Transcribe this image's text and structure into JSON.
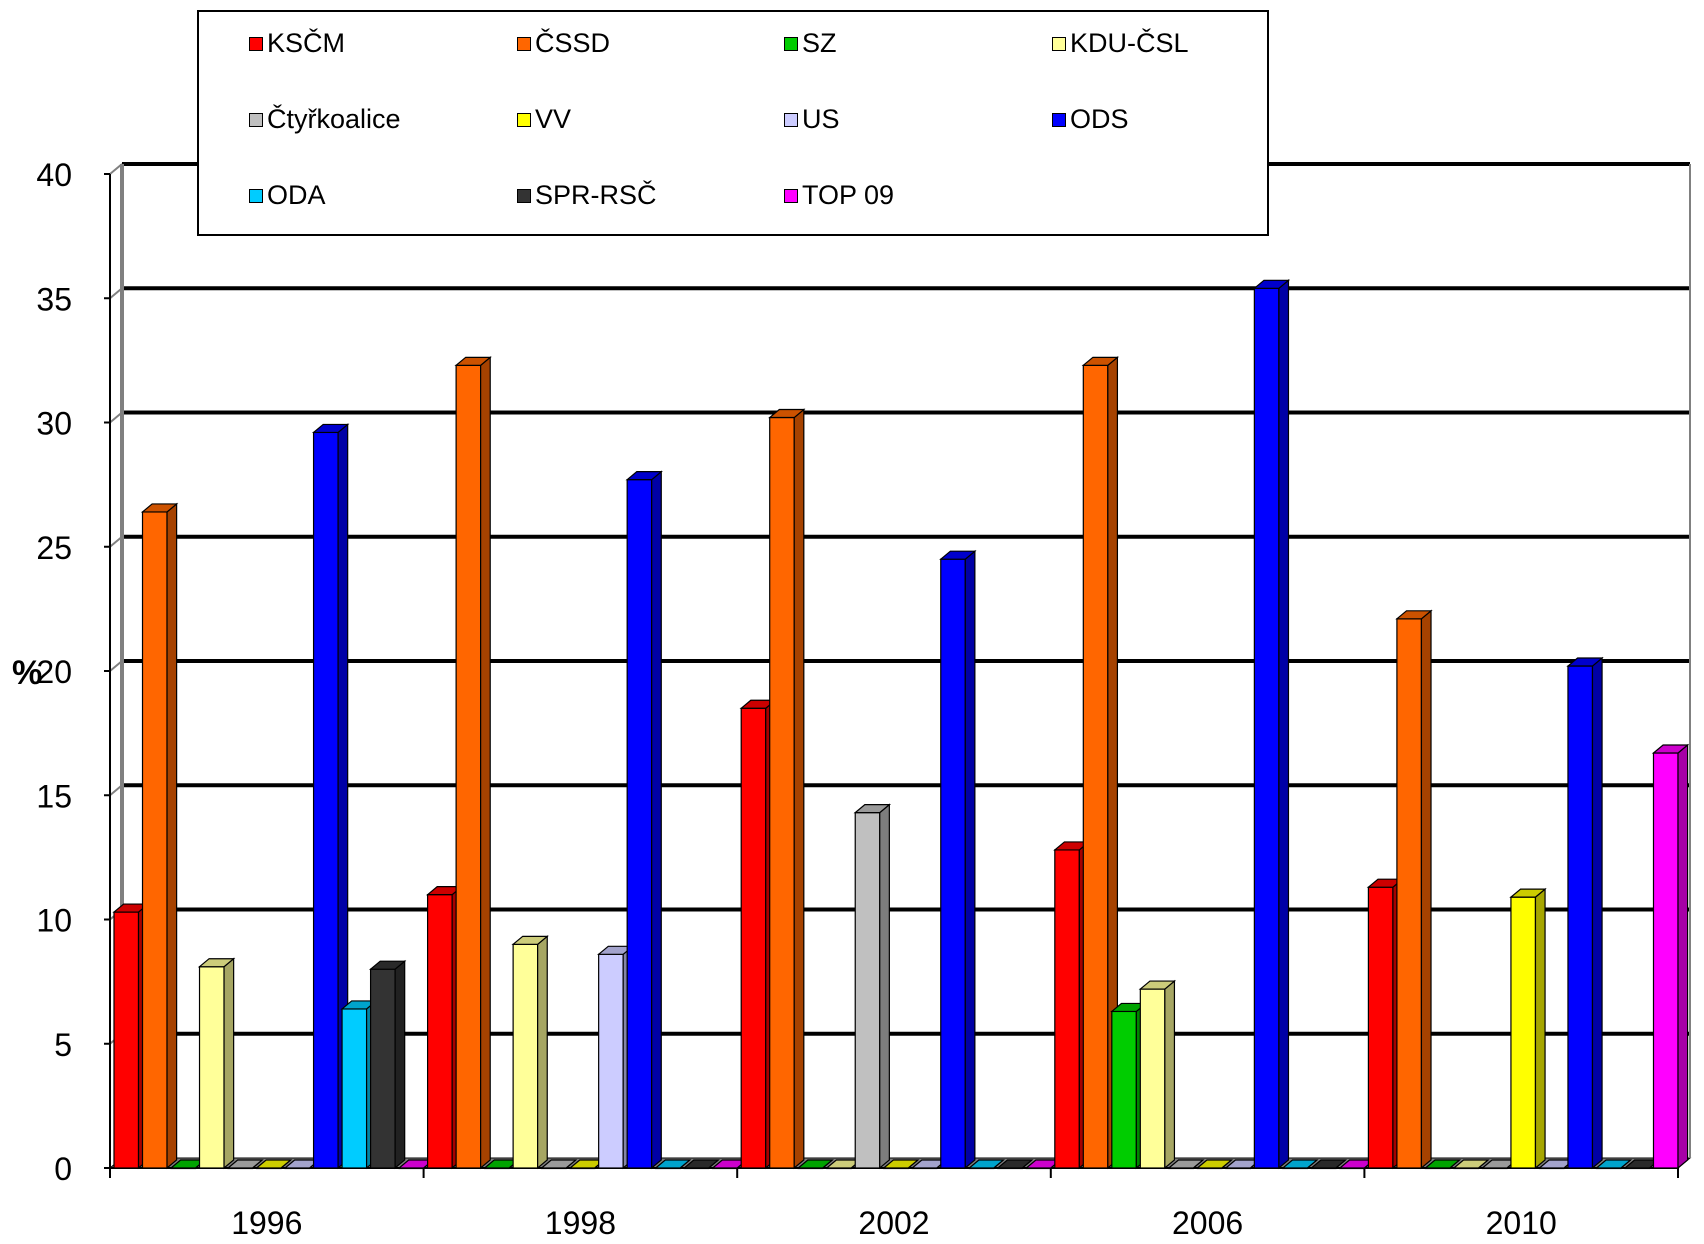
{
  "chart_data": {
    "type": "bar",
    "title": "",
    "xlabel": "",
    "ylabel": "%",
    "ylim": [
      0,
      40
    ],
    "yticks": [
      "0",
      "5",
      "10",
      "15",
      "20",
      "25",
      "30",
      "35",
      "40"
    ],
    "categories": [
      "1996",
      "1998",
      "2002",
      "2006",
      "2010"
    ],
    "grid": true,
    "legend_position": "top",
    "series": [
      {
        "name": "KSČM",
        "color": "#ff0000",
        "values": [
          10.3,
          11.0,
          18.5,
          12.8,
          11.3
        ]
      },
      {
        "name": "ČSSD",
        "color": "#ff6600",
        "values": [
          26.4,
          32.3,
          30.2,
          32.3,
          22.1
        ]
      },
      {
        "name": "SZ",
        "color": "#00cc00",
        "values": [
          0,
          0,
          0,
          6.3,
          0
        ]
      },
      {
        "name": "KDU-ČSL",
        "color": "#ffff99",
        "values": [
          8.1,
          9.0,
          0,
          7.2,
          0
        ]
      },
      {
        "name": "Čtyřkoalice",
        "color": "#c0c0c0",
        "values": [
          0,
          0,
          14.3,
          0,
          0
        ]
      },
      {
        "name": "VV",
        "color": "#ffff00",
        "values": [
          0,
          0,
          0,
          0,
          10.9
        ]
      },
      {
        "name": "US",
        "color": "#ccccff",
        "values": [
          0,
          8.6,
          0,
          0,
          0
        ]
      },
      {
        "name": "ODS",
        "color": "#0000ff",
        "values": [
          29.6,
          27.7,
          24.5,
          35.4,
          20.2
        ]
      },
      {
        "name": "ODA",
        "color": "#00ccff",
        "values": [
          6.4,
          0,
          0,
          0,
          0
        ]
      },
      {
        "name": "SPR-RSČ",
        "color": "#333333",
        "values": [
          8.0,
          0,
          0,
          0,
          0
        ]
      },
      {
        "name": "TOP 09",
        "color": "#ff00ff",
        "values": [
          0,
          0,
          0,
          0,
          16.7
        ]
      }
    ]
  }
}
